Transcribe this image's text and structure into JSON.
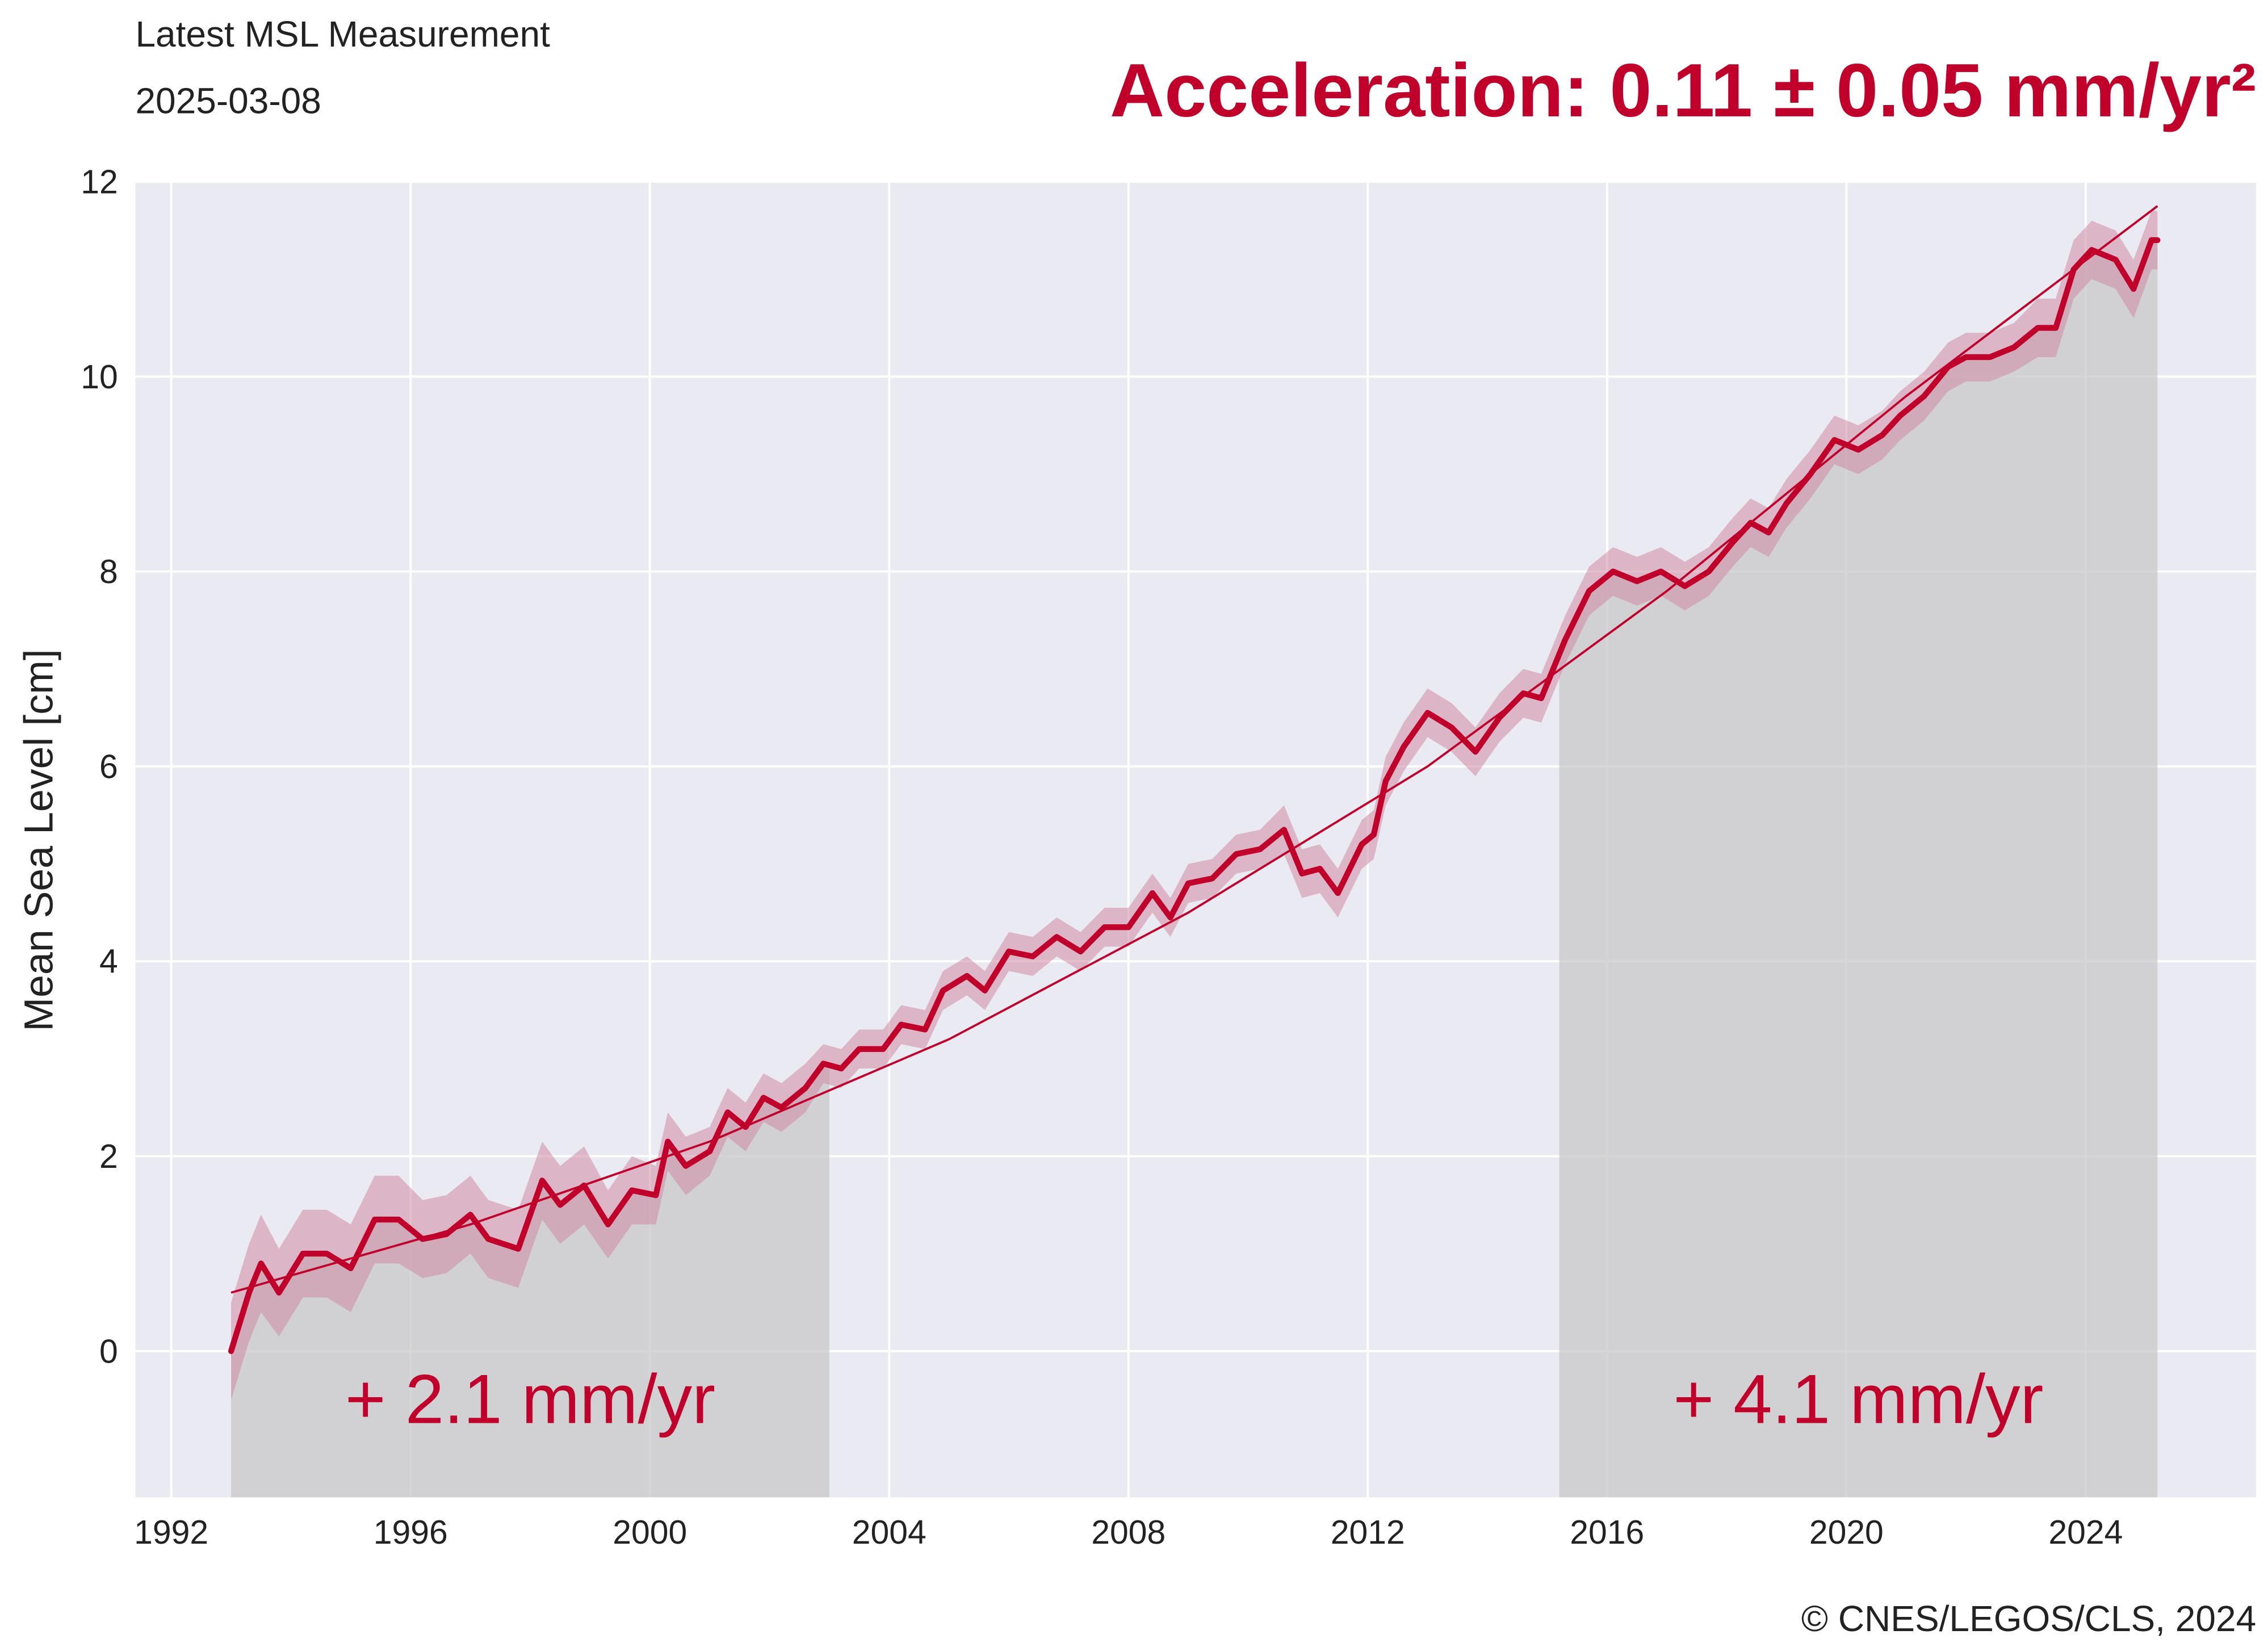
{
  "chart_data": {
    "type": "line",
    "header": "Latest MSL Measurement",
    "date": "2025-03-08",
    "title": "Acceleration: 0.11 ± 0.05 mm/yr²",
    "ylabel": "Mean Sea Level [cm]",
    "credit": "© CNES/LEGOS/CLS, 2024",
    "x": [
      1993.0,
      1993.3,
      1993.5,
      1993.8,
      1994.2,
      1994.6,
      1995.0,
      1995.4,
      1995.8,
      1996.2,
      1996.6,
      1997.0,
      1997.3,
      1997.8,
      1998.2,
      1998.5,
      1998.9,
      1999.3,
      1999.7,
      2000.1,
      2000.3,
      2000.6,
      2001.0,
      2001.3,
      2001.6,
      2001.9,
      2002.2,
      2002.6,
      2002.9,
      2003.2,
      2003.5,
      2003.9,
      2004.2,
      2004.6,
      2004.9,
      2005.3,
      2005.6,
      2006.0,
      2006.4,
      2006.8,
      2007.2,
      2007.6,
      2008.0,
      2008.4,
      2008.7,
      2009.0,
      2009.4,
      2009.8,
      2010.2,
      2010.6,
      2010.9,
      2011.2,
      2011.5,
      2011.9,
      2012.1,
      2012.3,
      2012.6,
      2013.0,
      2013.4,
      2013.8,
      2014.2,
      2014.6,
      2014.9,
      2015.3,
      2015.7,
      2016.1,
      2016.5,
      2016.9,
      2017.3,
      2017.7,
      2018.1,
      2018.4,
      2018.7,
      2019.0,
      2019.4,
      2019.8,
      2020.2,
      2020.6,
      2020.9,
      2021.3,
      2021.7,
      2022.0,
      2022.4,
      2022.8,
      2023.2,
      2023.5,
      2023.8,
      2024.1,
      2024.5,
      2024.8,
      2025.1,
      2025.2
    ],
    "series": [
      {
        "name": "MSL",
        "color": "#c0002b",
        "values": [
          0.0,
          0.6,
          0.9,
          0.6,
          1.0,
          1.0,
          0.85,
          1.35,
          1.35,
          1.15,
          1.2,
          1.4,
          1.15,
          1.05,
          1.75,
          1.5,
          1.7,
          1.3,
          1.65,
          1.6,
          2.15,
          1.9,
          2.05,
          2.45,
          2.3,
          2.6,
          2.5,
          2.7,
          2.95,
          2.9,
          3.1,
          3.1,
          3.35,
          3.3,
          3.7,
          3.85,
          3.7,
          4.1,
          4.05,
          4.25,
          4.1,
          4.35,
          4.35,
          4.7,
          4.45,
          4.8,
          4.85,
          5.1,
          5.15,
          5.35,
          4.9,
          4.95,
          4.7,
          5.2,
          5.3,
          5.85,
          6.2,
          6.55,
          6.4,
          6.15,
          6.5,
          6.75,
          6.7,
          7.3,
          7.8,
          8.0,
          7.9,
          8.0,
          7.85,
          8.0,
          8.3,
          8.5,
          8.4,
          8.7,
          9.0,
          9.35,
          9.25,
          9.4,
          9.6,
          9.8,
          10.1,
          10.2,
          10.2,
          10.3,
          10.5,
          10.5,
          11.1,
          11.3,
          11.2,
          10.9,
          11.4,
          11.4
        ],
        "error": [
          0.5,
          0.5,
          0.5,
          0.45,
          0.45,
          0.45,
          0.45,
          0.45,
          0.45,
          0.4,
          0.4,
          0.4,
          0.4,
          0.4,
          0.4,
          0.4,
          0.4,
          0.35,
          0.35,
          0.3,
          0.3,
          0.3,
          0.25,
          0.25,
          0.25,
          0.25,
          0.25,
          0.25,
          0.2,
          0.2,
          0.2,
          0.2,
          0.2,
          0.2,
          0.2,
          0.2,
          0.2,
          0.2,
          0.2,
          0.2,
          0.2,
          0.2,
          0.2,
          0.2,
          0.2,
          0.2,
          0.2,
          0.2,
          0.2,
          0.25,
          0.25,
          0.25,
          0.25,
          0.25,
          0.25,
          0.25,
          0.25,
          0.25,
          0.25,
          0.25,
          0.25,
          0.25,
          0.25,
          0.25,
          0.25,
          0.25,
          0.25,
          0.25,
          0.25,
          0.25,
          0.25,
          0.25,
          0.25,
          0.25,
          0.25,
          0.25,
          0.25,
          0.25,
          0.25,
          0.25,
          0.25,
          0.25,
          0.25,
          0.25,
          0.3,
          0.3,
          0.3,
          0.3,
          0.3,
          0.3,
          0.3,
          0.3
        ]
      }
    ],
    "trend": {
      "x": [
        1993,
        1997,
        2001,
        2005,
        2009,
        2013,
        2017,
        2021,
        2025.2
      ],
      "values": [
        0.6,
        1.3,
        2.15,
        3.2,
        4.5,
        6.0,
        7.8,
        9.8,
        11.75
      ]
    },
    "periods": [
      {
        "start": 1993,
        "end": 2003,
        "label": "+ 2.1 mm/yr"
      },
      {
        "start": 2015.2,
        "end": 2025.2,
        "label": "+ 4.1 mm/yr"
      }
    ],
    "band_color": "#d08aa2",
    "period_color": "#c8c8c8",
    "xlim": [
      1991.4,
      2026.85
    ],
    "ylim": [
      -1.5,
      12
    ],
    "xticks": [
      1992,
      1996,
      2000,
      2004,
      2008,
      2012,
      2016,
      2020,
      2024
    ],
    "yticks": [
      0,
      2,
      4,
      6,
      8,
      10,
      12
    ],
    "grid": true
  }
}
